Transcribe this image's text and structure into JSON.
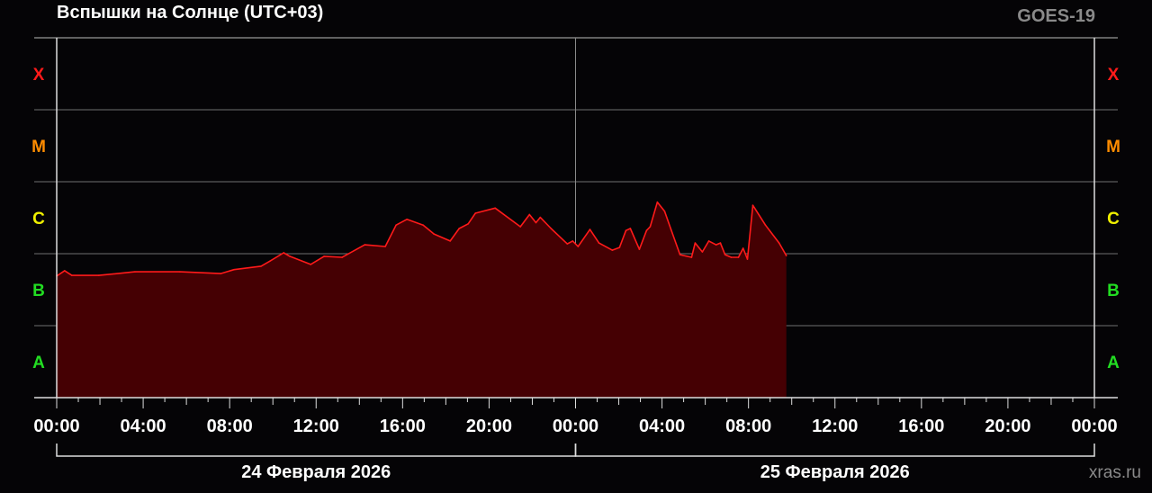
{
  "chart_data": {
    "type": "area",
    "title": "Вспышки на Солнце (UTC+03)",
    "satellite": "GOES-19",
    "watermark": "xras.ru",
    "y_scale": "log",
    "y_unit": "W/m²",
    "ylim": [
      1e-08,
      0.001
    ],
    "y_class_labels": [
      {
        "label": "A",
        "low": 1e-08,
        "color": "#22dd22"
      },
      {
        "label": "B",
        "low": 1e-07,
        "color": "#22dd22"
      },
      {
        "label": "C",
        "low": 1e-06,
        "color": "#f0f000"
      },
      {
        "label": "M",
        "low": 1e-05,
        "color": "#ff8c00"
      },
      {
        "label": "X",
        "low": 0.0001,
        "color": "#ff1a1a"
      }
    ],
    "xlim": [
      "2026-02-24T00:00",
      "2026-02-26T00:00"
    ],
    "x_tick_labels": [
      "00:00",
      "04:00",
      "08:00",
      "12:00",
      "16:00",
      "20:00",
      "00:00",
      "04:00",
      "08:00",
      "12:00",
      "16:00",
      "20:00",
      "00:00"
    ],
    "date_labels": [
      "24 Февраля 2026",
      "25 Февраля 2026"
    ],
    "grid": true,
    "line_color": "#ff1a1a",
    "fill_color": "#450003",
    "points": [
      [
        "2026-02-24T00:00",
        4.9e-07
      ],
      [
        "2026-02-24T00:22",
        5.8e-07
      ],
      [
        "2026-02-24T00:42",
        5e-07
      ],
      [
        "2026-02-24T01:57",
        5e-07
      ],
      [
        "2026-02-24T03:37",
        5.6e-07
      ],
      [
        "2026-02-24T05:42",
        5.6e-07
      ],
      [
        "2026-02-24T07:35",
        5.3e-07
      ],
      [
        "2026-02-24T08:12",
        6e-07
      ],
      [
        "2026-02-24T09:27",
        6.7e-07
      ],
      [
        "2026-02-24T09:52",
        7.9e-07
      ],
      [
        "2026-02-24T10:30",
        1.03e-06
      ],
      [
        "2026-02-24T10:47",
        9.2e-07
      ],
      [
        "2026-02-24T11:45",
        7.1e-07
      ],
      [
        "2026-02-24T12:22",
        9.2e-07
      ],
      [
        "2026-02-24T13:12",
        8.9e-07
      ],
      [
        "2026-02-24T14:15",
        1.33e-06
      ],
      [
        "2026-02-24T15:12",
        1.26e-06
      ],
      [
        "2026-02-24T15:42",
        2.5e-06
      ],
      [
        "2026-02-24T16:12",
        3e-06
      ],
      [
        "2026-02-24T16:57",
        2.5e-06
      ],
      [
        "2026-02-24T17:27",
        1.88e-06
      ],
      [
        "2026-02-24T18:12",
        1.5e-06
      ],
      [
        "2026-02-24T18:37",
        2.24e-06
      ],
      [
        "2026-02-24T19:02",
        2.6e-06
      ],
      [
        "2026-02-24T19:22",
        3.65e-06
      ],
      [
        "2026-02-24T20:17",
        4.3e-06
      ],
      [
        "2026-02-24T21:27",
        2.37e-06
      ],
      [
        "2026-02-24T21:52",
        3.5e-06
      ],
      [
        "2026-02-24T22:10",
        2.7e-06
      ],
      [
        "2026-02-24T22:22",
        3.2e-06
      ],
      [
        "2026-02-24T22:52",
        2.24e-06
      ],
      [
        "2026-02-24T23:37",
        1.37e-06
      ],
      [
        "2026-02-24T23:52",
        1.5e-06
      ],
      [
        "2026-02-25T00:07",
        1.26e-06
      ],
      [
        "2026-02-25T00:40",
        2.17e-06
      ],
      [
        "2026-02-25T01:05",
        1.41e-06
      ],
      [
        "2026-02-25T01:42",
        1.12e-06
      ],
      [
        "2026-02-25T02:02",
        1.22e-06
      ],
      [
        "2026-02-25T02:20",
        2.1e-06
      ],
      [
        "2026-02-25T02:32",
        2.24e-06
      ],
      [
        "2026-02-25T02:57",
        1.15e-06
      ],
      [
        "2026-02-25T03:17",
        2.1e-06
      ],
      [
        "2026-02-25T03:27",
        2.37e-06
      ],
      [
        "2026-02-25T03:47",
        5.2e-06
      ],
      [
        "2026-02-25T04:07",
        3.9e-06
      ],
      [
        "2026-02-25T04:25",
        2.17e-06
      ],
      [
        "2026-02-25T04:50",
        9.7e-07
      ],
      [
        "2026-02-25T05:22",
        8.9e-07
      ],
      [
        "2026-02-25T05:32",
        1.41e-06
      ],
      [
        "2026-02-25T05:52",
        1.06e-06
      ],
      [
        "2026-02-25T06:10",
        1.5e-06
      ],
      [
        "2026-02-25T06:30",
        1.33e-06
      ],
      [
        "2026-02-25T06:42",
        1.41e-06
      ],
      [
        "2026-02-25T06:55",
        9.7e-07
      ],
      [
        "2026-02-25T07:12",
        8.9e-07
      ],
      [
        "2026-02-25T07:32",
        8.9e-07
      ],
      [
        "2026-02-25T07:45",
        1.19e-06
      ],
      [
        "2026-02-25T07:57",
        8.4e-07
      ],
      [
        "2026-02-25T08:12",
        4.7e-06
      ],
      [
        "2026-02-25T08:47",
        2.5e-06
      ],
      [
        "2026-02-25T09:25",
        1.41e-06
      ],
      [
        "2026-02-25T09:45",
        9.4e-07
      ]
    ]
  }
}
